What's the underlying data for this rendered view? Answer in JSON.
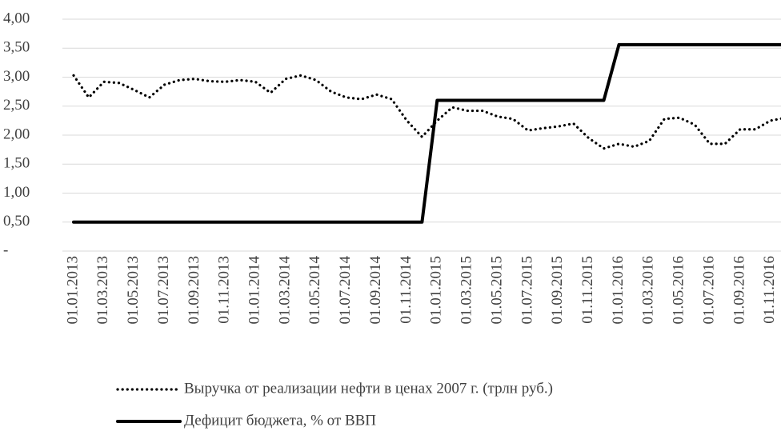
{
  "chart_data": {
    "type": "line",
    "categories": [
      "01.01.2013",
      null,
      "01.03.2013",
      null,
      "01.05.2013",
      null,
      "01.07.2013",
      null,
      "01.09.2013",
      null,
      "01.11.2013",
      null,
      "01.01.2014",
      null,
      "01.03.2014",
      null,
      "01.05.2014",
      null,
      "01.07.2014",
      null,
      "01.09.2014",
      null,
      "01.11.2014",
      null,
      "01.01.2015",
      null,
      "01.03.2015",
      null,
      "01.05.2015",
      null,
      "01.07.2015",
      null,
      "01.09.2015",
      null,
      "01.11.2015",
      null,
      "01.01.2016",
      null,
      "01.03.2016",
      null,
      "01.05.2016",
      null,
      "01.07.2016",
      null,
      "01.09.2016",
      null,
      "01.11.2016",
      null
    ],
    "series": [
      {
        "name": "Выручка от реализации нефти в ценах 2007 г. (трлн руб.)",
        "color": "#000000",
        "dash": "dotted",
        "values": [
          3.03,
          2.65,
          2.92,
          2.9,
          2.78,
          2.65,
          2.87,
          2.95,
          2.97,
          2.93,
          2.92,
          2.95,
          2.92,
          2.73,
          2.97,
          3.03,
          2.95,
          2.75,
          2.65,
          2.62,
          2.7,
          2.62,
          2.25,
          1.97,
          2.25,
          2.48,
          2.42,
          2.42,
          2.32,
          2.28,
          2.08,
          2.12,
          2.15,
          2.2,
          1.95,
          1.77,
          1.85,
          1.8,
          1.9,
          2.28,
          2.3,
          2.18,
          1.85,
          1.85,
          2.1,
          2.1,
          2.25,
          2.3
        ]
      },
      {
        "name": "Дефицит бюджета, % от ВВП",
        "color": "#000000",
        "dash": "solid",
        "values": [
          0.5,
          0.5,
          0.5,
          0.5,
          0.5,
          0.5,
          0.5,
          0.5,
          0.5,
          0.5,
          0.5,
          0.5,
          0.5,
          0.5,
          0.5,
          0.5,
          0.5,
          0.5,
          0.5,
          0.5,
          0.5,
          0.5,
          0.5,
          0.5,
          2.6,
          2.6,
          2.6,
          2.6,
          2.6,
          2.6,
          2.6,
          2.6,
          2.6,
          2.6,
          2.6,
          2.6,
          3.56,
          3.56,
          3.56,
          3.56,
          3.56,
          3.56,
          3.56,
          3.56,
          3.56,
          3.56,
          3.56,
          3.56
        ]
      }
    ],
    "ylim": [
      0,
      4
    ],
    "yticks": [
      {
        "value": 0,
        "label": "-"
      },
      {
        "value": 0.5,
        "label": "0,50"
      },
      {
        "value": 1,
        "label": "1,00"
      },
      {
        "value": 1.5,
        "label": "1,50"
      },
      {
        "value": 2,
        "label": "2,00"
      },
      {
        "value": 2.5,
        "label": "2,50"
      },
      {
        "value": 3,
        "label": "3,00"
      },
      {
        "value": 3.5,
        "label": "3,50"
      },
      {
        "value": 4,
        "label": "4,00"
      }
    ],
    "grid": true,
    "legend": "bottom"
  }
}
